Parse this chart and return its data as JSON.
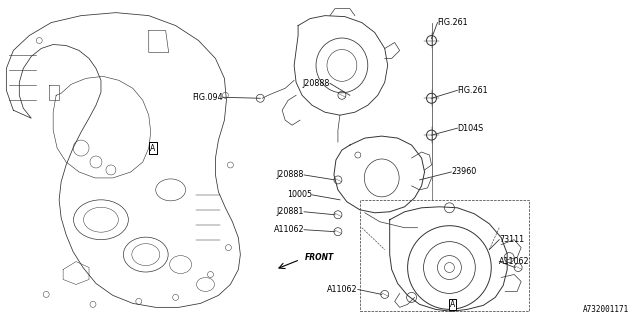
{
  "bg_color": "#ffffff",
  "line_color": "#333333",
  "text_color": "#000000",
  "diagram_id": "A732001171",
  "figsize": [
    6.4,
    3.2
  ],
  "dpi": 100,
  "xlim": [
    0,
    640
  ],
  "ylim": [
    0,
    320
  ]
}
